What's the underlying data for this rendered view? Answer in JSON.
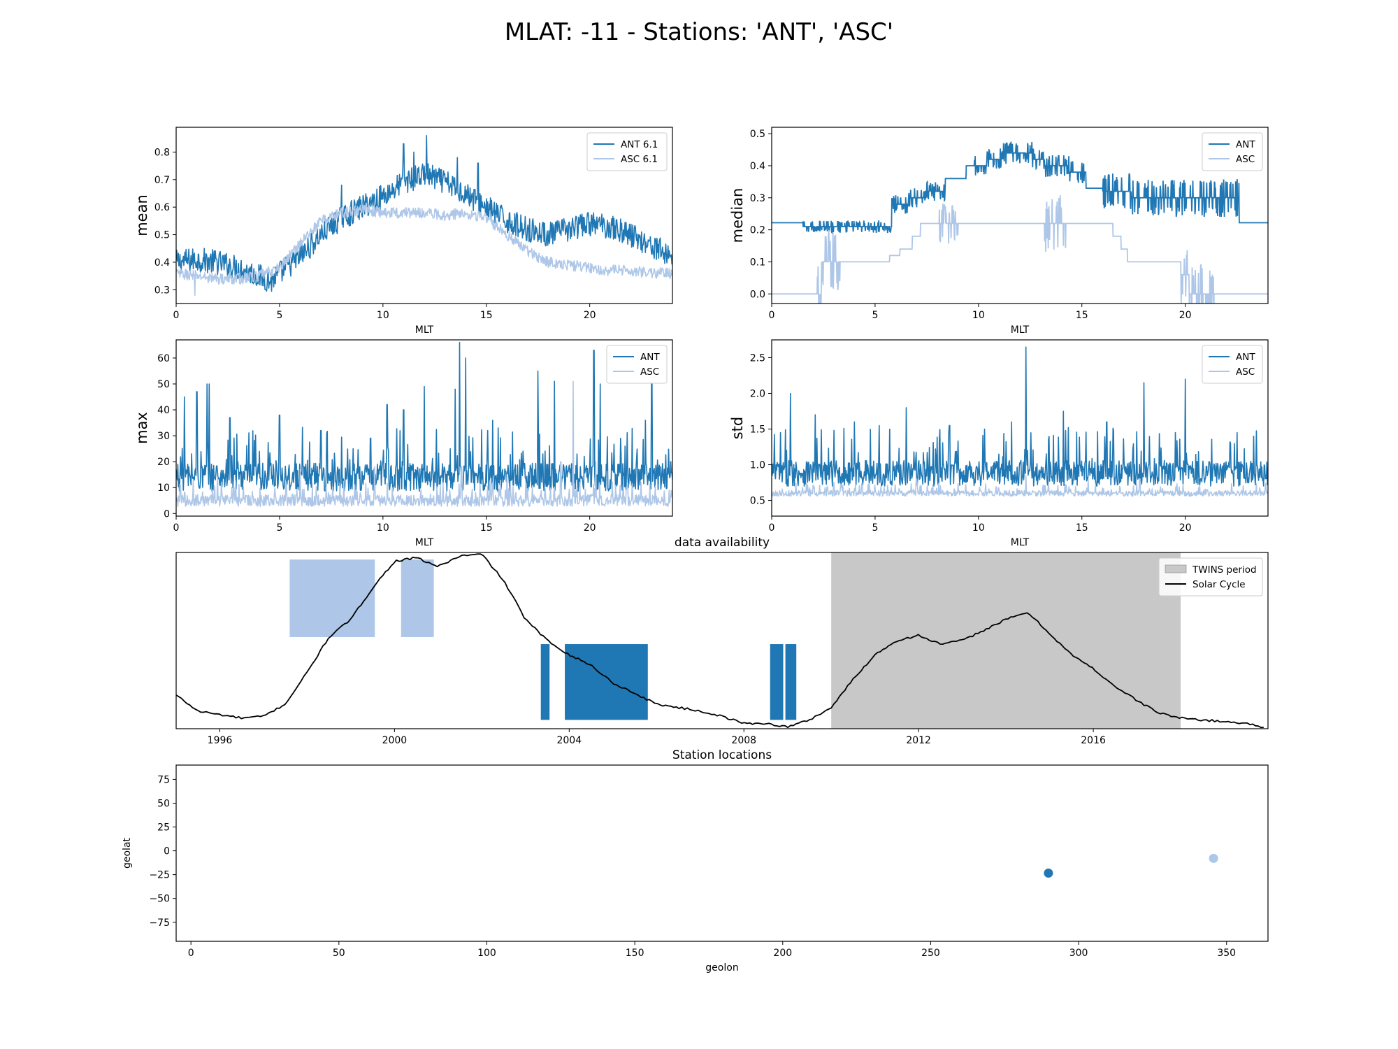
{
  "figure": {
    "title": "MLAT: -11 - Stations: 'ANT', 'ASC'",
    "colors": {
      "ANT": "#1f77b4",
      "ASC": "#aec7e8",
      "twins": "#c8c8c8",
      "solar": "#000000"
    }
  },
  "chart_data": [
    {
      "id": "mean",
      "type": "line",
      "xlabel": "MLT",
      "ylabel": "mean",
      "xlim": [
        0,
        24
      ],
      "ylim": [
        0.25,
        0.89
      ],
      "xticks": [
        0,
        5,
        10,
        15,
        20
      ],
      "yticks": [
        0.3,
        0.4,
        0.5,
        0.6,
        0.7,
        0.8
      ],
      "ytick_labels": [
        "0.3",
        "0.4",
        "0.5",
        "0.6",
        "0.7",
        "0.8"
      ],
      "legend": "upper right",
      "series": [
        {
          "name": "ANT 6.1",
          "color": "#1f77b4",
          "anchors_x": [
            0,
            1,
            2,
            3,
            4,
            4.6,
            5,
            6,
            7,
            8,
            9,
            10,
            11,
            12,
            13,
            14,
            15,
            16,
            17,
            18,
            19,
            20,
            21,
            22,
            23,
            24
          ],
          "anchors_y": [
            0.4,
            0.41,
            0.4,
            0.38,
            0.35,
            0.33,
            0.36,
            0.42,
            0.5,
            0.56,
            0.6,
            0.64,
            0.69,
            0.72,
            0.69,
            0.65,
            0.6,
            0.55,
            0.52,
            0.5,
            0.52,
            0.54,
            0.53,
            0.5,
            0.46,
            0.42
          ],
          "noise": 0.045,
          "spikes": [
            [
              11.0,
              0.83
            ],
            [
              12.1,
              0.86
            ],
            [
              11.5,
              0.8
            ],
            [
              13.6,
              0.78
            ],
            [
              14.6,
              0.76
            ],
            [
              8.0,
              0.68
            ]
          ]
        },
        {
          "name": "ASC 6.1",
          "color": "#aec7e8",
          "anchors_x": [
            0,
            1,
            2,
            3,
            4,
            5,
            6,
            7,
            8,
            9,
            10,
            11,
            12,
            13,
            14,
            15,
            16,
            17,
            18,
            19,
            20,
            21,
            22,
            23,
            24
          ],
          "anchors_y": [
            0.36,
            0.35,
            0.34,
            0.34,
            0.35,
            0.38,
            0.47,
            0.55,
            0.58,
            0.59,
            0.58,
            0.58,
            0.58,
            0.57,
            0.58,
            0.56,
            0.5,
            0.44,
            0.4,
            0.39,
            0.38,
            0.37,
            0.37,
            0.36,
            0.36
          ],
          "noise": 0.02,
          "spikes": [
            [
              0.9,
              0.28
            ]
          ]
        }
      ]
    },
    {
      "id": "median",
      "type": "line",
      "xlabel": "MLT",
      "ylabel": "median",
      "xlim": [
        0,
        24
      ],
      "ylim": [
        -0.03,
        0.52
      ],
      "xticks": [
        0,
        5,
        10,
        15,
        20
      ],
      "yticks": [
        0.0,
        0.1,
        0.2,
        0.3,
        0.4,
        0.5
      ],
      "ytick_labels": [
        "0.0",
        "0.1",
        "0.2",
        "0.3",
        "0.4",
        "0.5"
      ],
      "legend": "upper right",
      "series": [
        {
          "name": "ANT",
          "color": "#1f77b4",
          "steps": [
            [
              0,
              0.222
            ],
            [
              1.5,
              0.21
            ],
            [
              5.8,
              0.25
            ],
            [
              5.8,
              0.28
            ],
            [
              6.6,
              0.3
            ],
            [
              7.4,
              0.32
            ],
            [
              8.4,
              0.36
            ],
            [
              9.4,
              0.4
            ],
            [
              10.4,
              0.42
            ],
            [
              11.2,
              0.44
            ],
            [
              12.6,
              0.42
            ],
            [
              13.2,
              0.4
            ],
            [
              14.4,
              0.38
            ],
            [
              15.2,
              0.33
            ],
            [
              16.0,
              0.32
            ],
            [
              17.4,
              0.3
            ],
            [
              22.6,
              0.222
            ],
            [
              24,
              0.222
            ]
          ],
          "jitter_ranges": [
            [
              1.5,
              5.8,
              0.02
            ],
            [
              5.8,
              8.4,
              0.03
            ],
            [
              9.8,
              13.5,
              0.035
            ],
            [
              13.5,
              15.2,
              0.035
            ],
            [
              16.0,
              22.6,
              0.06
            ]
          ]
        },
        {
          "name": "ASC",
          "color": "#aec7e8",
          "steps": [
            [
              0,
              0.0
            ],
            [
              2.4,
              0.1
            ],
            [
              3.3,
              0.1
            ],
            [
              5.7,
              0.12
            ],
            [
              6.2,
              0.14
            ],
            [
              6.8,
              0.18
            ],
            [
              7.2,
              0.22
            ],
            [
              16.5,
              0.18
            ],
            [
              16.9,
              0.14
            ],
            [
              17.2,
              0.1
            ],
            [
              19.8,
              0.06
            ],
            [
              20.2,
              0.0
            ],
            [
              24,
              0.0
            ]
          ],
          "jitter_ranges": [
            [
              2.2,
              3.3,
              0.1
            ],
            [
              8.1,
              9.0,
              0.065
            ],
            [
              13.1,
              14.3,
              0.09
            ],
            [
              19.8,
              21.4,
              0.1
            ]
          ]
        }
      ]
    },
    {
      "id": "max",
      "type": "line",
      "xlabel": "MLT",
      "ylabel": "max",
      "xlim": [
        0,
        24
      ],
      "ylim": [
        -1,
        67
      ],
      "xticks": [
        0,
        5,
        10,
        15,
        20
      ],
      "yticks": [
        0,
        10,
        20,
        30,
        40,
        50,
        60
      ],
      "ytick_labels": [
        "0",
        "10",
        "20",
        "30",
        "40",
        "50",
        "60"
      ],
      "legend": "upper right",
      "series": [
        {
          "name": "ANT",
          "color": "#1f77b4",
          "base": 14,
          "noise": 6,
          "spikes": [
            [
              0.4,
              45
            ],
            [
              1.0,
              47
            ],
            [
              1.5,
              50
            ],
            [
              1.6,
              50
            ],
            [
              2.6,
              37
            ],
            [
              5.0,
              38
            ],
            [
              7.0,
              32
            ],
            [
              10.2,
              42
            ],
            [
              11.0,
              40
            ],
            [
              12.0,
              49
            ],
            [
              13.5,
              48
            ],
            [
              13.7,
              66
            ],
            [
              14.0,
              60
            ],
            [
              15.3,
              36
            ],
            [
              17.5,
              55
            ],
            [
              18.3,
              51
            ],
            [
              20.2,
              63
            ],
            [
              20.5,
              50
            ],
            [
              22.7,
              36
            ],
            [
              23.0,
              50
            ]
          ]
        },
        {
          "name": "ASC",
          "color": "#aec7e8",
          "base": 5,
          "noise": 2.5,
          "spikes": [
            [
              2.0,
              14
            ],
            [
              6.0,
              17
            ],
            [
              9.6,
              18
            ],
            [
              13.8,
              18
            ],
            [
              16.0,
              15
            ],
            [
              18.6,
              20
            ],
            [
              19.2,
              51
            ],
            [
              20.3,
              20
            ]
          ]
        }
      ]
    },
    {
      "id": "std",
      "type": "line",
      "xlabel": "MLT",
      "ylabel": "std",
      "xlim": [
        0,
        24
      ],
      "ylim": [
        0.28,
        2.75
      ],
      "xticks": [
        0,
        5,
        10,
        15,
        20
      ],
      "yticks": [
        0.5,
        1.0,
        1.5,
        2.0,
        2.5
      ],
      "ytick_labels": [
        "0.5",
        "1.0",
        "1.5",
        "2.0",
        "2.5"
      ],
      "legend": "upper right",
      "series": [
        {
          "name": "ANT",
          "color": "#1f77b4",
          "base": 0.88,
          "noise": 0.2,
          "spikes": [
            [
              0.9,
              2.0
            ],
            [
              2.1,
              1.7
            ],
            [
              4.0,
              1.6
            ],
            [
              5.2,
              1.55
            ],
            [
              6.5,
              1.8
            ],
            [
              8.6,
              1.55
            ],
            [
              10.3,
              1.5
            ],
            [
              11.6,
              1.6
            ],
            [
              12.3,
              2.65
            ],
            [
              14.1,
              1.75
            ],
            [
              16.2,
              1.6
            ],
            [
              18.0,
              2.15
            ],
            [
              20.0,
              2.2
            ],
            [
              22.5,
              1.45
            ],
            [
              23.3,
              1.4
            ]
          ]
        },
        {
          "name": "ASC",
          "color": "#aec7e8",
          "base": 0.6,
          "noise": 0.045,
          "spikes": [
            [
              3.0,
              0.75
            ],
            [
              7.0,
              0.8
            ],
            [
              12.3,
              0.85
            ],
            [
              15.3,
              0.8
            ],
            [
              17.8,
              0.8
            ]
          ]
        }
      ]
    },
    {
      "id": "availability",
      "type": "area",
      "title": "data availability",
      "xlim": [
        1995.0,
        2020.0
      ],
      "ylim": [
        0,
        1
      ],
      "xticks": [
        1996,
        2000,
        2004,
        2008,
        2012,
        2016
      ],
      "legend": "upper right",
      "twins_period": {
        "label": "TWINS period",
        "start": 2010.0,
        "end": 2018.0
      },
      "solar_cycle": {
        "label": "Solar Cycle",
        "x": [
          1995.0,
          1995.5,
          1996.0,
          1996.5,
          1997.0,
          1997.5,
          1998.0,
          1998.5,
          1999.0,
          1999.5,
          2000.0,
          2000.5,
          2001.0,
          2001.5,
          2002.0,
          2002.5,
          2003.0,
          2003.5,
          2004.0,
          2004.5,
          2005.0,
          2005.5,
          2006.0,
          2006.5,
          2007.0,
          2007.5,
          2008.0,
          2008.5,
          2009.0,
          2009.5,
          2010.0,
          2010.5,
          2011.0,
          2011.5,
          2012.0,
          2012.5,
          2013.0,
          2013.5,
          2014.0,
          2014.5,
          2015.0,
          2015.5,
          2016.0,
          2016.5,
          2017.0,
          2017.5,
          2018.0,
          2018.5,
          2019.0,
          2019.5,
          2019.9
        ],
        "y": [
          0.19,
          0.1,
          0.08,
          0.06,
          0.07,
          0.14,
          0.32,
          0.52,
          0.62,
          0.8,
          0.95,
          0.97,
          0.92,
          0.98,
          0.99,
          0.84,
          0.62,
          0.5,
          0.42,
          0.36,
          0.26,
          0.2,
          0.14,
          0.12,
          0.1,
          0.07,
          0.03,
          0.03,
          0.01,
          0.05,
          0.12,
          0.28,
          0.42,
          0.5,
          0.53,
          0.48,
          0.5,
          0.56,
          0.62,
          0.66,
          0.54,
          0.42,
          0.34,
          0.24,
          0.16,
          0.09,
          0.06,
          0.05,
          0.04,
          0.03,
          0.01
        ]
      },
      "series": [
        {
          "name": "ASC",
          "color": "#aec7e8",
          "y0": 0.52,
          "y1": 0.96,
          "intervals": [
            [
              1997.6,
              1999.55
            ],
            [
              2000.15,
              2000.9
            ]
          ]
        },
        {
          "name": "ANT",
          "color": "#1f77b4",
          "y0": 0.05,
          "y1": 0.48,
          "intervals": [
            [
              2003.35,
              2003.55
            ],
            [
              2003.9,
              2005.8
            ],
            [
              2008.6,
              2008.9
            ],
            [
              2008.95,
              2009.2
            ]
          ]
        }
      ]
    },
    {
      "id": "locations",
      "type": "scatter",
      "title": "Station locations",
      "xlabel": "geolon",
      "ylabel": "geolat",
      "xlim": [
        -5,
        364
      ],
      "ylim": [
        -95,
        90
      ],
      "xticks": [
        0,
        50,
        100,
        150,
        200,
        250,
        300,
        350
      ],
      "yticks": [
        -75,
        -50,
        -25,
        0,
        25,
        50,
        75
      ],
      "ytick_labels": [
        "−75",
        "−50",
        "−25",
        "0",
        "25",
        "50",
        "75"
      ],
      "points": [
        {
          "name": "ANT",
          "lon": 289.8,
          "lat": -23.4,
          "color": "#1f77b4"
        },
        {
          "name": "ASC",
          "lon": 345.6,
          "lat": -7.9,
          "color": "#aec7e8"
        }
      ]
    }
  ]
}
